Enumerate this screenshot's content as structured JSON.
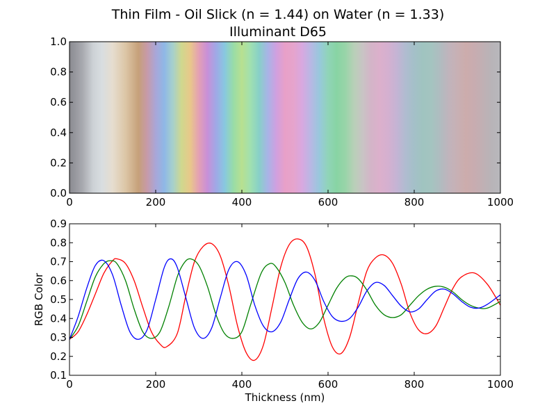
{
  "title": "Thin Film - Oil Slick (n = 1.44) on Water (n = 1.33)",
  "subtitle": "Illuminant D65",
  "chart_data": [
    {
      "type": "heatmap",
      "xlim": [
        0,
        1000
      ],
      "ylim": [
        0,
        1
      ],
      "xticks": [
        "0",
        "200",
        "400",
        "600",
        "800",
        "1000"
      ],
      "yticks": [
        "0.0",
        "0.2",
        "0.4",
        "0.6",
        "0.8",
        "1.0"
      ],
      "color_strip": {
        "x": [
          0,
          30,
          55,
          75,
          100,
          130,
          160,
          180,
          200,
          220,
          240,
          260,
          280,
          300,
          320,
          340,
          360,
          380,
          400,
          420,
          440,
          460,
          480,
          500,
          520,
          540,
          560,
          580,
          600,
          620,
          640,
          660,
          680,
          700,
          720,
          740,
          760,
          780,
          800,
          820,
          840,
          860,
          880,
          900,
          920,
          940,
          960,
          980,
          1000
        ],
        "colors": [
          "#8a8a90",
          "#a8a9af",
          "#cdd2d6",
          "#d8dde0",
          "#e6ddcf",
          "#dcc6a6",
          "#c6a07a",
          "#c79aa8",
          "#a9a6d8",
          "#8fb8e6",
          "#a6d0cc",
          "#d0d88e",
          "#e8c88a",
          "#e4a0b4",
          "#c890d8",
          "#a0a8e6",
          "#88c8e0",
          "#98dca8",
          "#b8e090",
          "#a0e0b0",
          "#88d0c8",
          "#a8b4e6",
          "#d0a0e0",
          "#e8a0c8",
          "#e6a4cc",
          "#d8a8e0",
          "#b8b8e4",
          "#98c8dc",
          "#90d4b8",
          "#88d4a4",
          "#98d4a8",
          "#b8d0b8",
          "#c8c4c4",
          "#d4b4c8",
          "#dcb0cc",
          "#d4b0d0",
          "#c4b4d4",
          "#b0bcd0",
          "#a4c0c8",
          "#a0c4c0",
          "#a4c4c0",
          "#b0bcc0",
          "#c0b4bc",
          "#c8b0b4",
          "#ccacac",
          "#c8acb0",
          "#c0b0b4",
          "#b8b4b8",
          "#b8b8bc"
        ]
      }
    },
    {
      "type": "line",
      "xlabel": "Thickness (nm)",
      "ylabel": "RGB Color",
      "xlim": [
        0,
        1000
      ],
      "ylim": [
        0.1,
        0.9
      ],
      "xticks": [
        "0",
        "200",
        "400",
        "600",
        "800",
        "1000"
      ],
      "yticks": [
        "0.1",
        "0.2",
        "0.3",
        "0.4",
        "0.5",
        "0.6",
        "0.7",
        "0.8",
        "0.9"
      ],
      "series": [
        {
          "color": "#ff0000",
          "x": [
            0,
            20,
            40,
            60,
            80,
            100,
            110,
            130,
            150,
            170,
            190,
            210,
            225,
            250,
            270,
            290,
            310,
            330,
            350,
            370,
            390,
            410,
            430,
            450,
            470,
            490,
            510,
            530,
            550,
            570,
            590,
            610,
            630,
            650,
            670,
            690,
            710,
            730,
            750,
            770,
            790,
            810,
            830,
            850,
            870,
            890,
            910,
            940,
            970,
            1000
          ],
          "values": [
            0.29,
            0.33,
            0.42,
            0.53,
            0.64,
            0.705,
            0.715,
            0.69,
            0.6,
            0.46,
            0.33,
            0.265,
            0.25,
            0.32,
            0.52,
            0.7,
            0.78,
            0.795,
            0.73,
            0.57,
            0.36,
            0.22,
            0.18,
            0.26,
            0.46,
            0.67,
            0.79,
            0.82,
            0.78,
            0.63,
            0.4,
            0.25,
            0.215,
            0.3,
            0.48,
            0.65,
            0.72,
            0.735,
            0.69,
            0.58,
            0.43,
            0.34,
            0.32,
            0.36,
            0.46,
            0.56,
            0.62,
            0.64,
            0.58,
            0.47
          ]
        },
        {
          "color": "#008000",
          "x": [
            0,
            20,
            40,
            60,
            80,
            95,
            110,
            130,
            150,
            170,
            190,
            210,
            230,
            250,
            265,
            280,
            300,
            320,
            340,
            360,
            380,
            400,
            420,
            445,
            465,
            480,
            500,
            520,
            540,
            560,
            580,
            600,
            620,
            640,
            655,
            670,
            690,
            710,
            730,
            750,
            770,
            790,
            810,
            830,
            850,
            870,
            890,
            910,
            930,
            950,
            970,
            1000
          ],
          "values": [
            0.29,
            0.36,
            0.49,
            0.62,
            0.69,
            0.705,
            0.69,
            0.6,
            0.45,
            0.33,
            0.295,
            0.33,
            0.46,
            0.62,
            0.69,
            0.715,
            0.68,
            0.57,
            0.42,
            0.32,
            0.295,
            0.33,
            0.47,
            0.64,
            0.69,
            0.67,
            0.59,
            0.47,
            0.38,
            0.345,
            0.38,
            0.47,
            0.56,
            0.615,
            0.625,
            0.61,
            0.55,
            0.47,
            0.42,
            0.405,
            0.42,
            0.47,
            0.52,
            0.555,
            0.57,
            0.565,
            0.54,
            0.5,
            0.47,
            0.455,
            0.455,
            0.49
          ]
        },
        {
          "color": "#0000ff",
          "x": [
            0,
            20,
            40,
            60,
            80,
            100,
            120,
            140,
            160,
            180,
            200,
            220,
            235,
            250,
            270,
            290,
            310,
            330,
            350,
            370,
            390,
            410,
            430,
            450,
            470,
            490,
            510,
            530,
            550,
            570,
            590,
            610,
            630,
            650,
            670,
            690,
            710,
            730,
            750,
            770,
            790,
            810,
            830,
            850,
            870,
            890,
            910,
            930,
            950,
            970,
            1000
          ],
          "values": [
            0.29,
            0.41,
            0.56,
            0.68,
            0.705,
            0.63,
            0.47,
            0.33,
            0.29,
            0.34,
            0.5,
            0.67,
            0.715,
            0.67,
            0.51,
            0.35,
            0.295,
            0.35,
            0.51,
            0.66,
            0.7,
            0.63,
            0.47,
            0.36,
            0.33,
            0.38,
            0.5,
            0.61,
            0.645,
            0.6,
            0.49,
            0.41,
            0.385,
            0.4,
            0.46,
            0.545,
            0.59,
            0.575,
            0.52,
            0.465,
            0.435,
            0.45,
            0.5,
            0.545,
            0.555,
            0.53,
            0.49,
            0.46,
            0.455,
            0.475,
            0.525
          ]
        }
      ]
    }
  ]
}
